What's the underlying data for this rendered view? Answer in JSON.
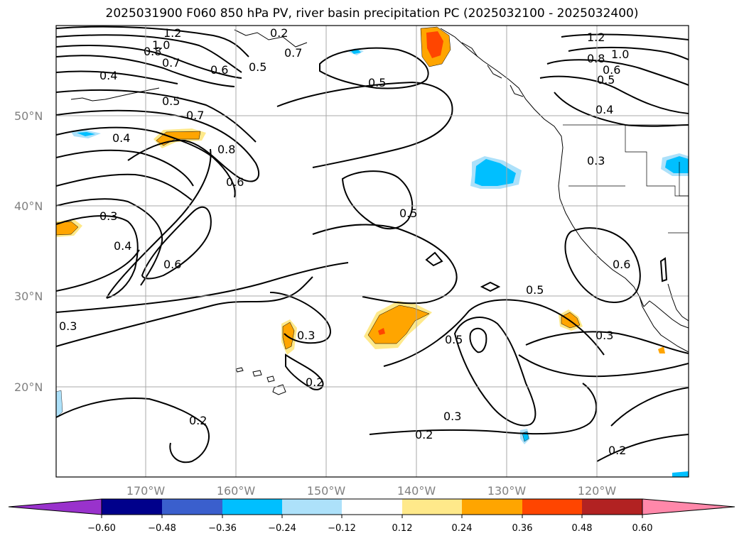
{
  "title": "2025031900 F060 850 hPa PV, river basin precipitation PC (2025032100 - 2025032400)",
  "map": {
    "lon_ticks": [
      "170°W",
      "160°W",
      "150°W",
      "140°W",
      "130°W",
      "120°W"
    ],
    "lat_ticks": [
      "50°N",
      "40°N",
      "30°N",
      "20°N"
    ],
    "contour_labels": [
      "1.2",
      "1.0",
      "0.8",
      "0.7",
      "0.6",
      "0.5",
      "0.4",
      "0.5",
      "0.7",
      "0.8",
      "0.6",
      "0.3",
      "0.4",
      "0.6",
      "0.5",
      "0.3",
      "0.2",
      "0.5",
      "0.5",
      "0.3",
      "0.2",
      "0.3",
      "0.2",
      "1.2",
      "1.0",
      "0.8",
      "0.6",
      "0.5",
      "0.4",
      "0.3",
      "0.6",
      "0.4",
      "0.5",
      "0.2",
      "0.3",
      "0.2",
      "0.7"
    ]
  },
  "colorbar": {
    "ticks": [
      "−0.60",
      "−0.48",
      "−0.36",
      "−0.24",
      "−0.12",
      "0.12",
      "0.24",
      "0.36",
      "0.48",
      "0.60"
    ],
    "colors": [
      "#9932CC",
      "#00008B",
      "#3A5FCD",
      "#00BFFF",
      "#ADE1FA",
      "#FFFFFF",
      "#FFE98A",
      "#FFA500",
      "#FF4500",
      "#B22222",
      "#FF88AA"
    ]
  }
}
